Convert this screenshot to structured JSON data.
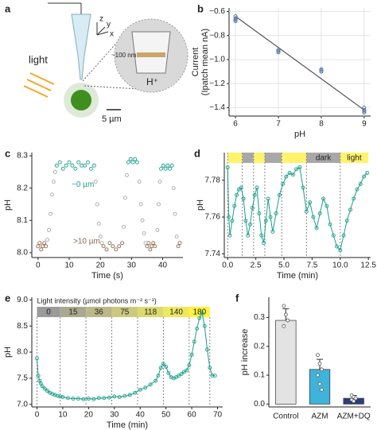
{
  "diagram": {
    "label": "a",
    "light": "light",
    "scale": "5 µm",
    "depth": "~100 nm",
    "ion": "H⁺",
    "axes": [
      "z",
      "y",
      "x"
    ]
  },
  "chart_data": [
    {
      "type": "scatter",
      "label": "b",
      "xlabel": "pH",
      "ylabel": [
        "Current",
        "(Ipatch mean nA)"
      ],
      "xlim": [
        5.85,
        9.15
      ],
      "ylim": [
        -1.47,
        -0.57
      ],
      "xticks": [
        6,
        7,
        8,
        9
      ],
      "yticks": [
        {
          "value": -0.6,
          "label": "−0.6"
        },
        {
          "value": -0.8,
          "label": "−0.8"
        },
        {
          "value": -1.0,
          "label": "−1.0"
        },
        {
          "value": -1.2,
          "label": "−1.2"
        },
        {
          "value": -1.4,
          "label": "−1.4"
        }
      ],
      "grid": true,
      "color": "#4a6fa5",
      "x": [
        6,
        6,
        6,
        6,
        7,
        7,
        7,
        8,
        8,
        8,
        9,
        9,
        9,
        9
      ],
      "values": [
        -0.64,
        -0.66,
        -0.67,
        -0.68,
        -0.92,
        -0.93,
        -0.94,
        -1.08,
        -1.09,
        -1.1,
        -1.4,
        -1.42,
        -1.43,
        -1.44
      ],
      "fit": {
        "x": [
          6,
          9
        ],
        "values": [
          -0.64,
          -1.42
        ]
      }
    },
    {
      "type": "scatter",
      "label": "c",
      "xlabel": "Time (s)",
      "ylabel": "pH",
      "xlim": [
        -2,
        46.5
      ],
      "ylim": [
        7.985,
        8.31
      ],
      "xticks": [
        0,
        10,
        20,
        30,
        40
      ],
      "yticks": [
        {
          "value": 8.0,
          "label": "8.0"
        },
        8.1,
        8.2,
        8.3
      ],
      "series": [
        {
          "name": "~0 µm",
          "color": "#1a9e8a",
          "x": [
            6,
            7,
            8,
            9,
            10,
            11,
            12,
            13,
            14,
            15,
            16,
            17,
            18,
            29,
            29.7,
            30.4,
            31.1,
            31.8,
            39.5,
            40.2,
            40.9,
            41.6,
            42.3,
            43
          ],
          "values": [
            8.27,
            8.28,
            8.26,
            8.27,
            8.28,
            8.27,
            8.26,
            8.28,
            8.27,
            8.27,
            8.28,
            8.26,
            8.27,
            8.28,
            8.29,
            8.28,
            8.29,
            8.28,
            8.26,
            8.27,
            8.26,
            8.27,
            8.26,
            8.27
          ]
        },
        {
          "name": ">10 µm",
          "color": "#8b6a4a",
          "x": [
            0,
            0.5,
            1,
            1.5,
            2,
            2.5,
            21,
            22,
            23,
            24,
            25,
            26,
            27,
            35,
            35.5,
            36,
            36.5,
            37,
            37.5,
            45,
            45.5
          ],
          "values": [
            8.02,
            8.03,
            8.01,
            8.02,
            8.03,
            8.02,
            8.02,
            8.01,
            8.03,
            8.02,
            8.01,
            8.02,
            8.03,
            8.02,
            8.03,
            8.01,
            8.02,
            8.03,
            8.02,
            8.02,
            8.03
          ]
        },
        {
          "color": "#a8a8a8",
          "x": [
            3,
            3.5,
            4,
            4.5,
            5,
            5.5,
            18.5,
            19,
            19.5,
            20,
            20.5,
            27.5,
            28,
            28.5,
            32.5,
            33,
            33.5,
            34,
            34.5,
            38.3,
            38.7,
            39.1,
            43.5,
            44,
            44.5
          ],
          "values": [
            8.04,
            8.07,
            8.12,
            8.18,
            8.22,
            8.25,
            8.22,
            8.15,
            8.09,
            8.05,
            8.03,
            8.08,
            8.17,
            8.24,
            8.22,
            8.15,
            8.1,
            8.06,
            8.03,
            8.07,
            8.15,
            8.22,
            8.2,
            8.12,
            8.05
          ]
        }
      ]
    },
    {
      "type": "line",
      "label": "d",
      "xlabel": "Time (min)",
      "ylabel": "pH",
      "xlim": [
        -0.3,
        12.7
      ],
      "ylim": [
        7.738,
        7.795
      ],
      "xticks": [
        {
          "value": 0,
          "label": "0.0"
        },
        {
          "value": 2.5,
          "label": "2.5"
        },
        {
          "value": 5,
          "label": "5.0"
        },
        {
          "value": 7.5,
          "label": "7.5"
        },
        {
          "value": 10,
          "label": "10.0"
        },
        {
          "value": 12.5,
          "label": "12.5"
        }
      ],
      "yticks": [
        7.74,
        7.76,
        7.78
      ],
      "color": "#1a9e8a",
      "bands": [
        {
          "x0": 0,
          "x1": 1.3,
          "color": "#fff36b"
        },
        {
          "x0": 1.3,
          "x1": 2.3,
          "color": "#a8a8a8"
        },
        {
          "x0": 2.3,
          "x1": 3.3,
          "color": "#fff36b"
        },
        {
          "x0": 3.3,
          "x1": 4.8,
          "color": "#a8a8a8"
        },
        {
          "x0": 4.8,
          "x1": 7,
          "color": "#fff36b"
        },
        {
          "x0": 7,
          "x1": 10,
          "color": "#a8a8a8",
          "label": "dark"
        },
        {
          "x0": 10,
          "x1": 12.5,
          "color": "#fff36b",
          "label": "light"
        }
      ],
      "x": [
        0,
        0.1,
        0.2,
        0.4,
        0.6,
        0.8,
        1.0,
        1.2,
        1.4,
        1.6,
        1.8,
        2.0,
        2.2,
        2.4,
        2.6,
        2.8,
        3.0,
        3.2,
        3.4,
        3.6,
        3.8,
        4.0,
        4.3,
        4.6,
        4.9,
        5.2,
        5.5,
        5.8,
        6.1,
        6.4,
        6.7,
        7.0,
        7.3,
        7.6,
        7.9,
        8.2,
        8.5,
        8.8,
        9.1,
        9.4,
        9.7,
        10.0,
        10.3,
        10.6,
        10.9,
        11.2,
        11.5,
        11.8,
        12.1,
        12.4
      ],
      "values": [
        7.787,
        7.76,
        7.75,
        7.758,
        7.766,
        7.772,
        7.775,
        7.776,
        7.77,
        7.758,
        7.75,
        7.756,
        7.765,
        7.772,
        7.776,
        7.762,
        7.75,
        7.746,
        7.758,
        7.77,
        7.76,
        7.752,
        7.762,
        7.772,
        7.778,
        7.782,
        7.784,
        7.783,
        7.786,
        7.787,
        7.776,
        7.763,
        7.768,
        7.76,
        7.754,
        7.762,
        7.77,
        7.766,
        7.756,
        7.75,
        7.744,
        7.742,
        7.75,
        7.758,
        7.764,
        7.77,
        7.775,
        7.778,
        7.782,
        7.784
      ]
    },
    {
      "type": "line",
      "label": "e",
      "xlabel": "Time (min)",
      "ylabel": "pH",
      "xlim": [
        -2,
        72
      ],
      "ylim": [
        6.95,
        9.05
      ],
      "xticks": [
        0,
        10,
        20,
        30,
        40,
        50,
        60,
        70
      ],
      "yticks": [
        {
          "value": 7.0,
          "label": "7.0"
        },
        7.5,
        {
          "value": 8.0,
          "label": "8.0"
        },
        8.5,
        {
          "value": 9.0,
          "label": "9.0"
        }
      ],
      "color": "#1a9e8a",
      "band_title": "Light intensity (µmol photons m⁻² s⁻¹)",
      "band_edges": [
        0,
        9,
        19,
        29,
        39,
        49,
        59,
        67
      ],
      "intensity": [
        0,
        15,
        36,
        75,
        118,
        140,
        180
      ],
      "band_colors": [
        "#9a9a9a",
        "#aaa890",
        "#bab888",
        "#cbc980",
        "#dcd970",
        "#eee860",
        "#fff33b"
      ],
      "x": [
        0,
        0.5,
        1,
        1.5,
        2,
        3,
        4,
        5,
        6,
        7,
        8,
        9,
        10,
        12,
        14,
        16,
        18,
        20,
        22,
        24,
        26,
        28,
        30,
        32,
        34,
        36,
        38,
        40,
        42,
        44,
        46,
        47,
        48,
        49,
        50,
        51,
        52,
        53,
        54,
        55,
        56,
        57,
        58,
        59,
        60,
        61,
        62,
        63,
        64,
        65,
        66,
        67,
        68,
        69
      ],
      "values": [
        7.88,
        7.55,
        7.45,
        7.4,
        7.35,
        7.3,
        7.26,
        7.22,
        7.2,
        7.18,
        7.16,
        7.15,
        7.14,
        7.12,
        7.11,
        7.11,
        7.1,
        7.11,
        7.1,
        7.12,
        7.12,
        7.13,
        7.15,
        7.14,
        7.16,
        7.18,
        7.22,
        7.28,
        7.32,
        7.38,
        7.45,
        7.55,
        7.7,
        7.78,
        7.72,
        7.6,
        7.52,
        7.5,
        7.52,
        7.55,
        7.58,
        7.62,
        7.65,
        7.75,
        7.95,
        8.2,
        8.45,
        8.65,
        8.75,
        8.5,
        8.05,
        7.7,
        7.55,
        7.55
      ]
    },
    {
      "type": "bar",
      "label": "f",
      "ylabel": "pH increase",
      "ylim": [
        -0.01,
        0.37
      ],
      "yticks": [
        {
          "value": 0,
          "label": "0.0"
        },
        0.1,
        0.2,
        0.3
      ],
      "categories": [
        "Control",
        "AZM",
        "AZM+DQ"
      ],
      "values": [
        0.29,
        0.12,
        0.02
      ],
      "errors": [
        0.04,
        0.035,
        0.01
      ],
      "colors": [
        "#e3e3e3",
        "#3fb3d9",
        "#2c3e7a"
      ],
      "points": [
        [
          0.34,
          0.31,
          0.29,
          0.27
        ],
        [
          0.17,
          0.14,
          0.12,
          0.1,
          0.07,
          0.05
        ],
        [
          0.03,
          0.025,
          0.02,
          0.015,
          0.01
        ]
      ]
    }
  ]
}
